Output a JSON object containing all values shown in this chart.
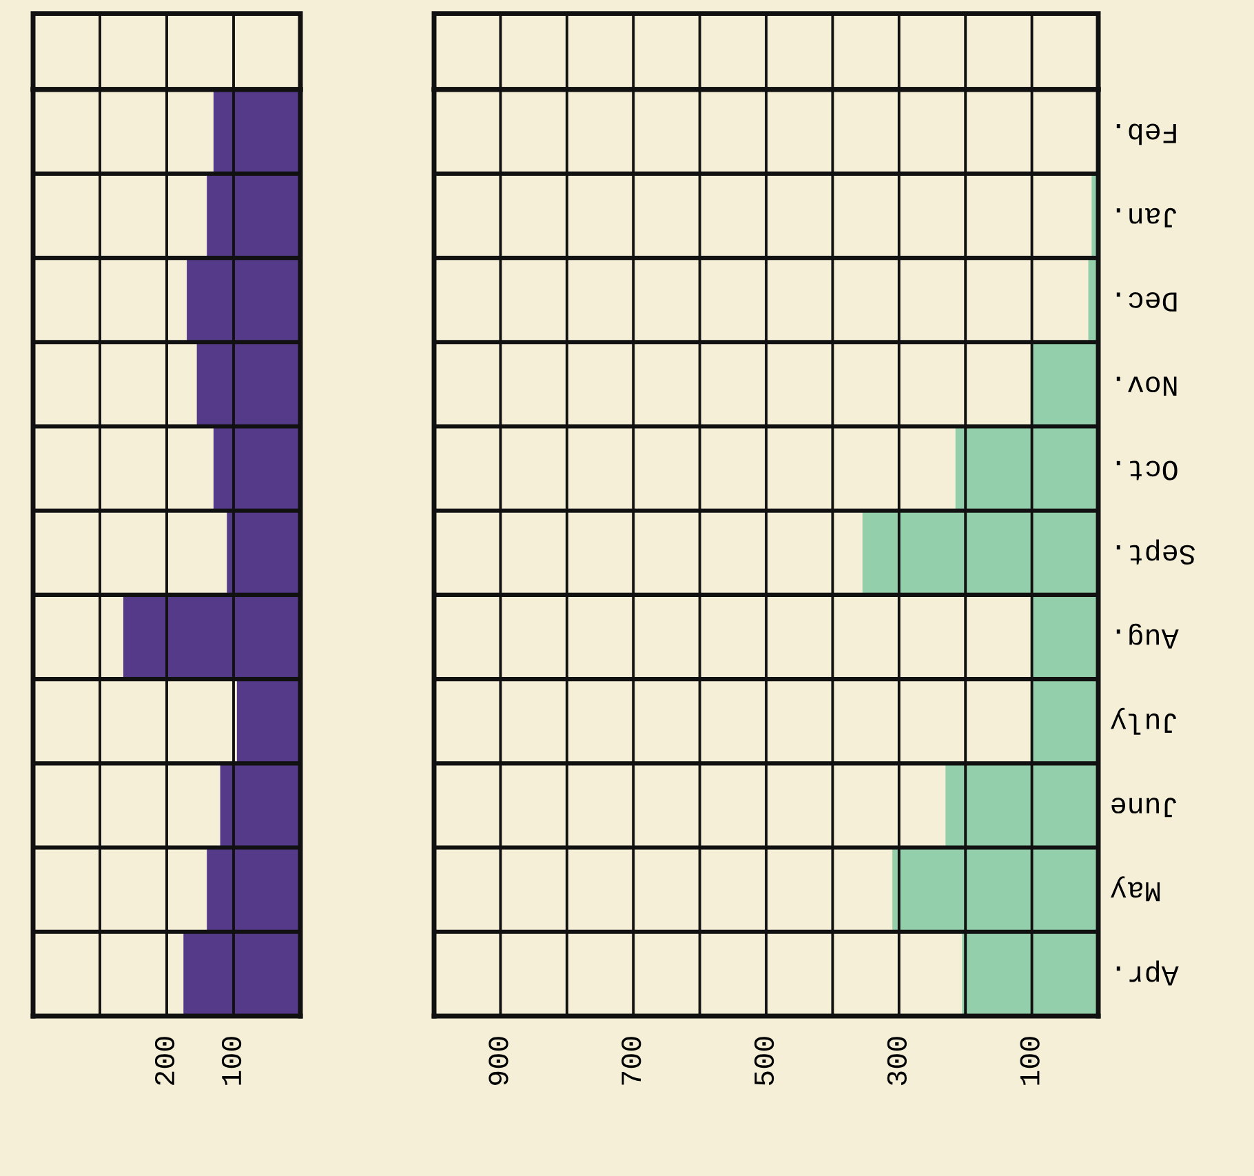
{
  "chart_data": [
    {
      "type": "bar",
      "orientation": "horizontal",
      "categories": [
        null,
        null,
        null,
        null,
        null,
        null,
        null,
        null,
        null,
        null,
        null
      ],
      "values": [
        130,
        140,
        170,
        155,
        130,
        110,
        265,
        95,
        120,
        140,
        175
      ],
      "color": "#553a8a",
      "xlim": [
        400,
        0
      ],
      "xticks": [
        {
          "value": 300,
          "label": null
        },
        200,
        100
      ],
      "grid": true,
      "tick_labels": "x"
    },
    {
      "type": "bar",
      "orientation": "horizontal",
      "categories": [
        "Feb.",
        "Jan.",
        "Dec.",
        "Nov.",
        "Oct.",
        "Sept.",
        "Aug.",
        "July",
        "June",
        "May",
        "Apr."
      ],
      "values": [
        0,
        10,
        15,
        100,
        215,
        355,
        100,
        100,
        230,
        310,
        205
      ],
      "color": "#93cfab",
      "xlim": [
        1000,
        0
      ],
      "xticks": [
        900,
        {
          "value": 800,
          "label": null
        },
        700,
        {
          "value": 600,
          "label": null
        },
        500,
        {
          "value": 400,
          "label": null
        },
        300,
        {
          "value": 200,
          "label": null
        },
        100
      ],
      "grid": true
    }
  ]
}
